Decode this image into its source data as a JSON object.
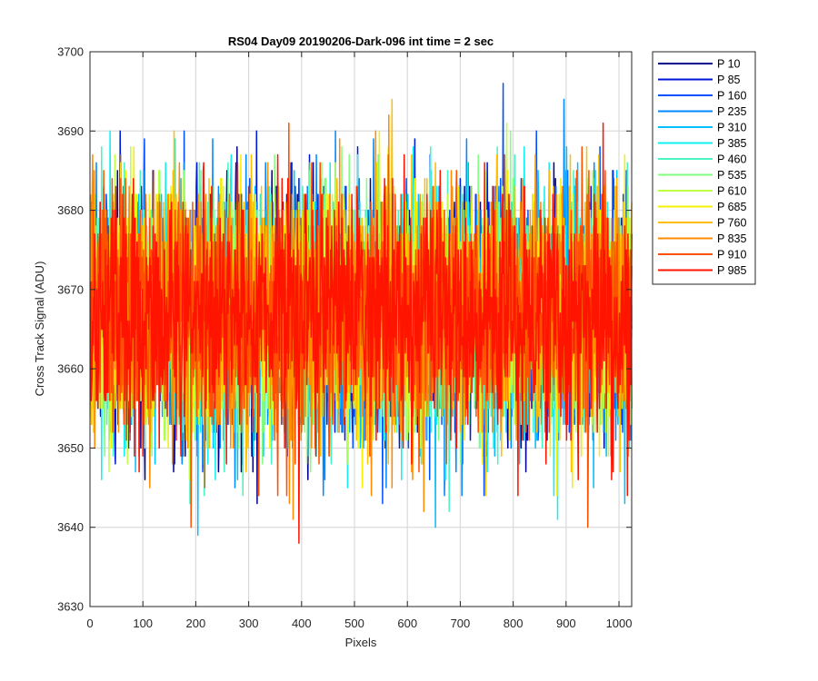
{
  "chart_data": {
    "type": "line",
    "title": "RS04 Day09 20190206-Dark-096 int time = 2 sec",
    "xlabel": "Pixels",
    "ylabel": "Cross Track Signal (ADU)",
    "xlim": [
      0,
      1024
    ],
    "ylim": [
      3630,
      3700
    ],
    "xticks": [
      0,
      100,
      200,
      300,
      400,
      500,
      600,
      700,
      800,
      900,
      1000
    ],
    "yticks": [
      3630,
      3640,
      3650,
      3660,
      3670,
      3680,
      3690,
      3700
    ],
    "grid": true,
    "legend_position": "outside-top-right",
    "noise": {
      "mean": 3667,
      "sd": 7.5,
      "min": 3638,
      "max": 3696,
      "points_per_series": 1024
    },
    "series": [
      {
        "name": "P 10",
        "color": "#00008f"
      },
      {
        "name": "P 85",
        "color": "#0016d9"
      },
      {
        "name": "P 160",
        "color": "#0050ff"
      },
      {
        "name": "P 235",
        "color": "#0088ff"
      },
      {
        "name": "P 310",
        "color": "#00c0ff"
      },
      {
        "name": "P 385",
        "color": "#10f0f0"
      },
      {
        "name": "P 460",
        "color": "#48f5c0"
      },
      {
        "name": "P 535",
        "color": "#80ff80"
      },
      {
        "name": "P 610",
        "color": "#bcff44"
      },
      {
        "name": "P 685",
        "color": "#f4f000"
      },
      {
        "name": "P 760",
        "color": "#ffbe00"
      },
      {
        "name": "P 835",
        "color": "#ff8c00"
      },
      {
        "name": "P 910",
        "color": "#ff5000"
      },
      {
        "name": "P 985",
        "color": "#ff1400"
      }
    ]
  }
}
